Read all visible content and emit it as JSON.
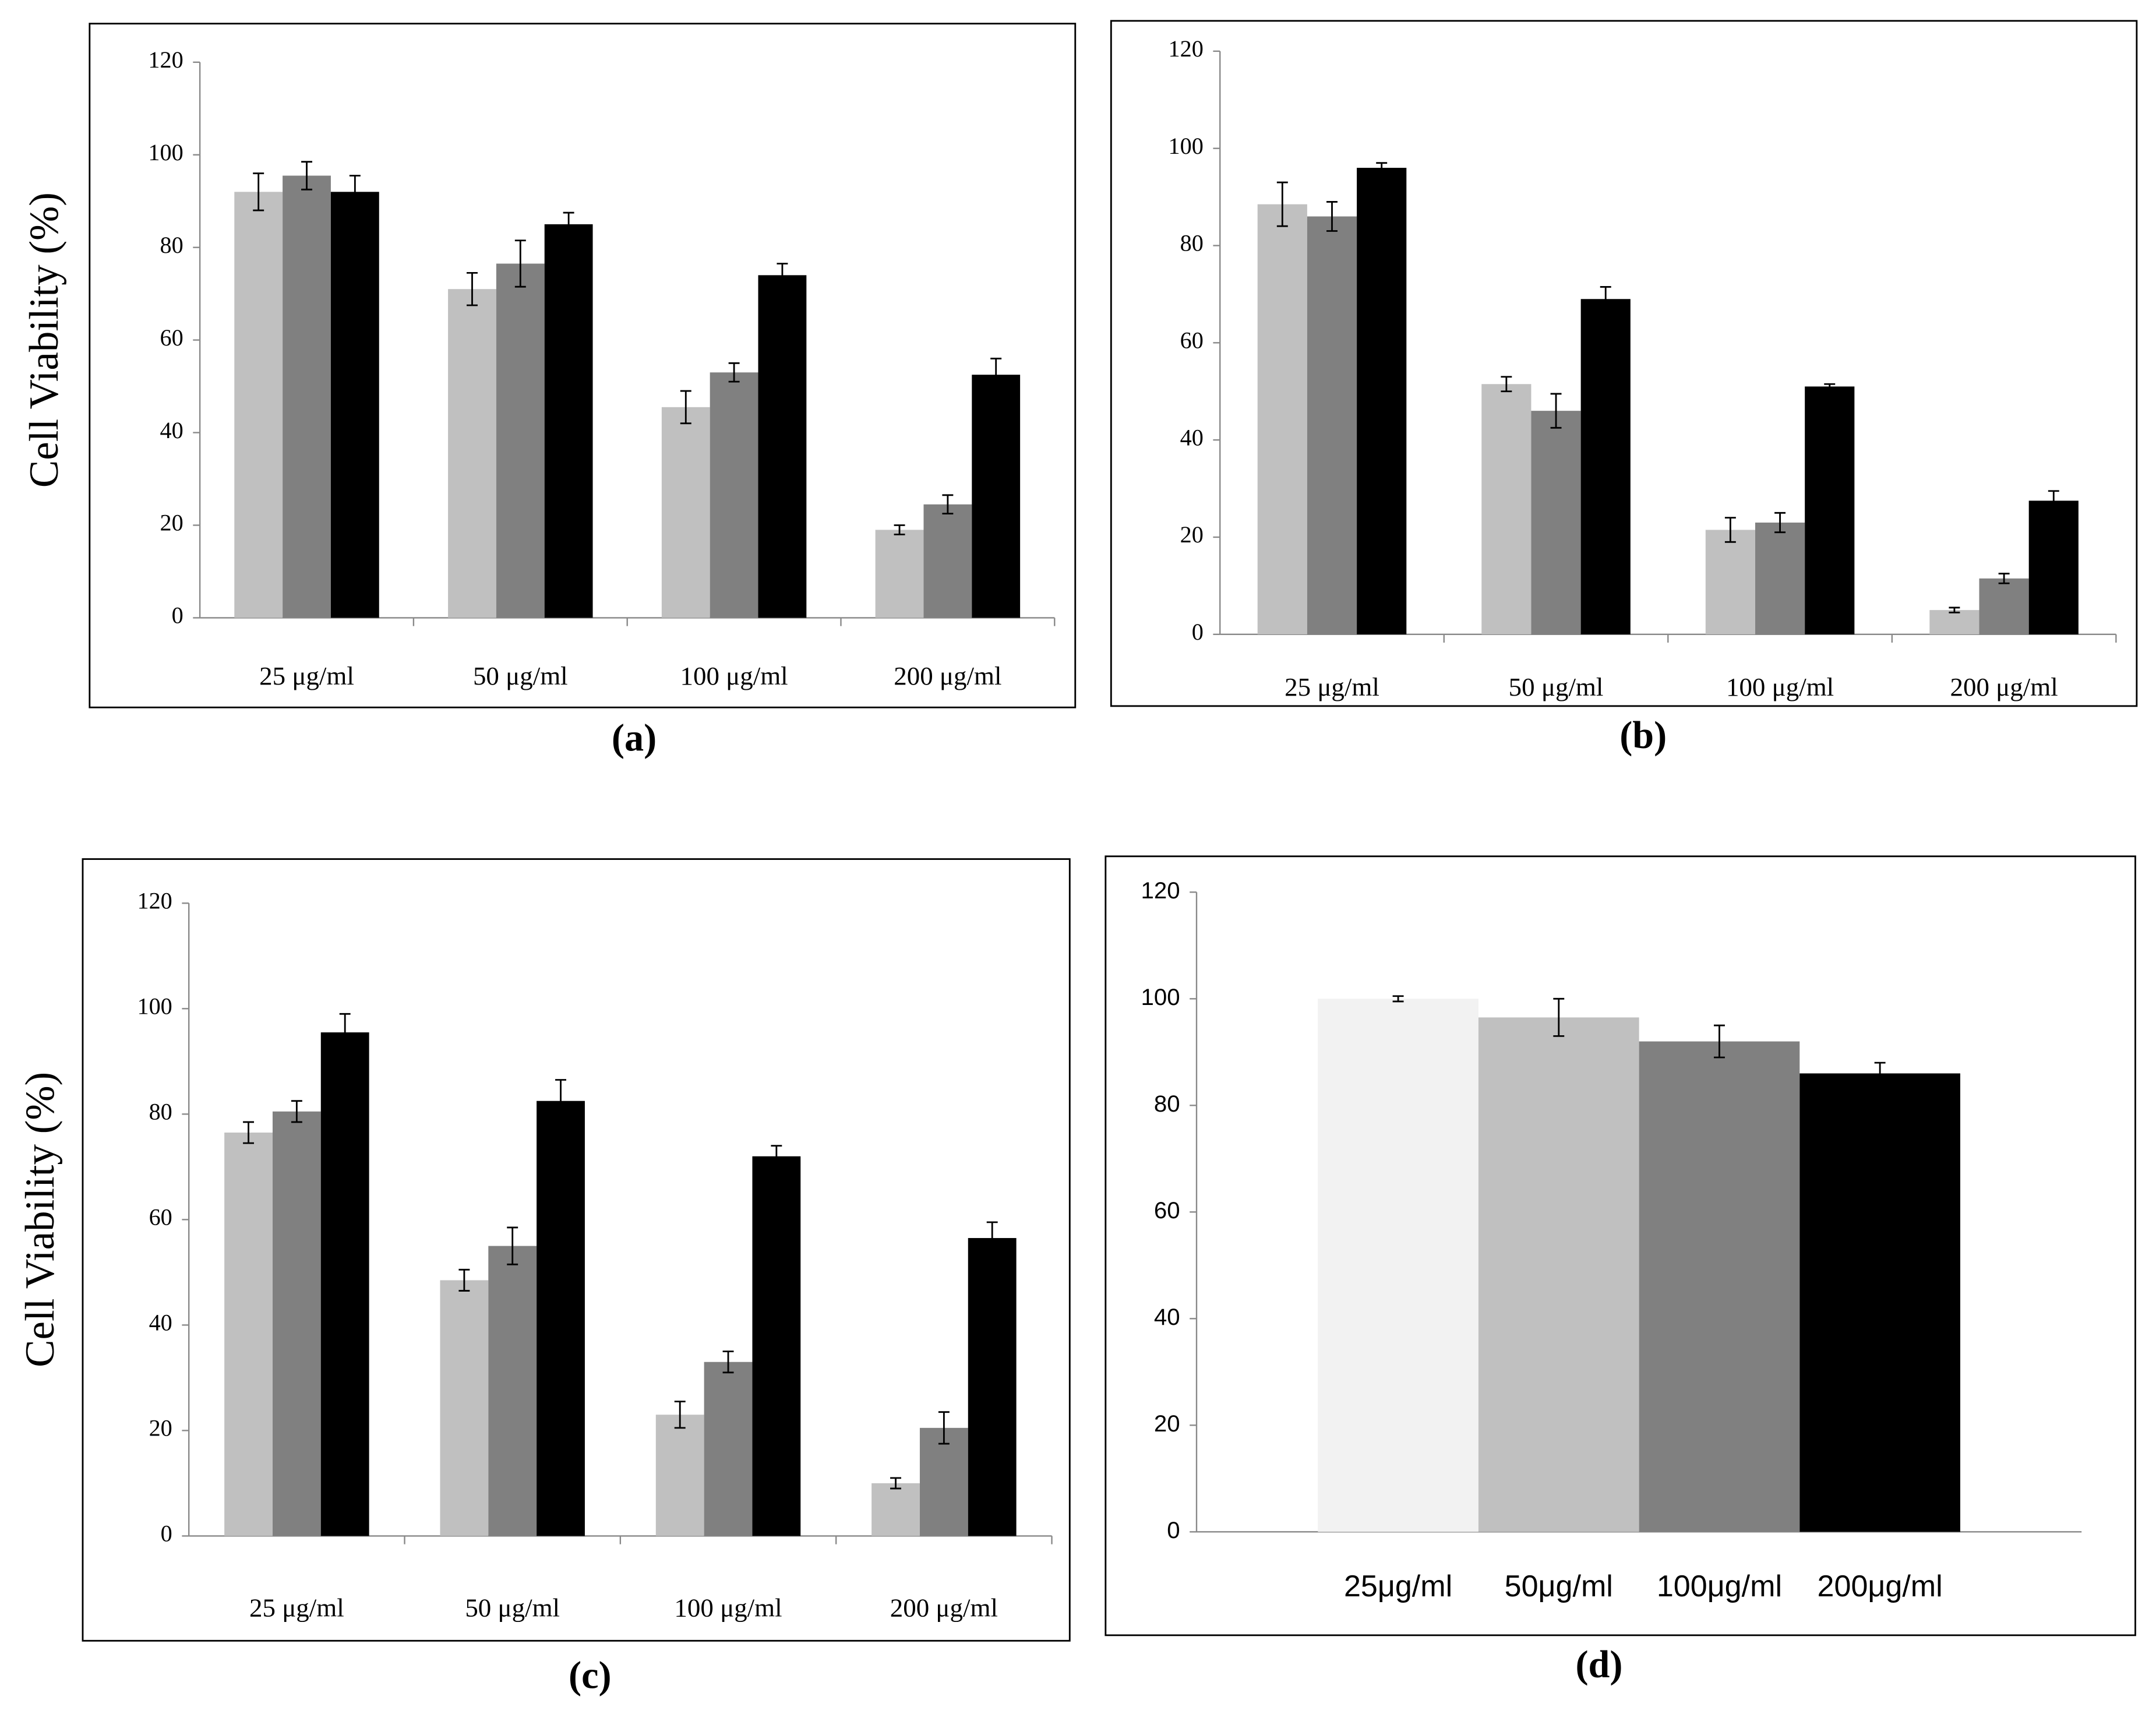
{
  "chart_data": [
    {
      "type": "bar",
      "panel": "(a)",
      "ylabel": "Cell Viability (%)",
      "categories": [
        "25 μg/ml",
        "50 μg/ml",
        "100  μg/ml",
        "200 μg/ml"
      ],
      "series": [
        {
          "color": "#c0c0c0",
          "values": [
            92,
            71,
            45.5,
            19
          ],
          "errors": [
            4,
            3.5,
            3.5,
            1
          ]
        },
        {
          "color": "#808080",
          "values": [
            95.5,
            76.5,
            53,
            24.5
          ],
          "errors": [
            3,
            5,
            2,
            2
          ]
        },
        {
          "color": "#000000",
          "values": [
            92,
            85,
            74,
            52.5
          ],
          "errors": [
            3.5,
            2.5,
            2.5,
            3.5
          ]
        }
      ],
      "ylim": [
        0,
        120
      ],
      "yticks": [
        0,
        20,
        40,
        60,
        80,
        100,
        120
      ]
    },
    {
      "type": "bar",
      "panel": "(b)",
      "categories": [
        "25 μg/ml",
        "50 μg/ml",
        "100  μg/ml",
        "200 μg/ml"
      ],
      "series": [
        {
          "color": "#c0c0c0",
          "values": [
            88.5,
            51.5,
            21.5,
            5
          ],
          "errors": [
            4.5,
            1.5,
            2.5,
            0.5
          ]
        },
        {
          "color": "#808080",
          "values": [
            86,
            46,
            23,
            11.5
          ],
          "errors": [
            3,
            3.5,
            2,
            1
          ]
        },
        {
          "color": "#000000",
          "values": [
            96,
            69,
            51,
            27.5
          ],
          "errors": [
            1,
            2.5,
            0.5,
            2
          ]
        }
      ],
      "ylim": [
        0,
        120
      ],
      "yticks": [
        0,
        20,
        40,
        60,
        80,
        100,
        120
      ]
    },
    {
      "type": "bar",
      "panel": "(c)",
      "ylabel": "Cell Viability (%)",
      "categories": [
        "25 μg/ml",
        "50 μg/ml",
        "100  μg/ml",
        "200 μg/ml"
      ],
      "series": [
        {
          "color": "#c0c0c0",
          "values": [
            76.5,
            48.5,
            23,
            10
          ],
          "errors": [
            2,
            2,
            2.5,
            1
          ]
        },
        {
          "color": "#808080",
          "values": [
            80.5,
            55,
            33,
            20.5
          ],
          "errors": [
            2,
            3.5,
            2,
            3
          ]
        },
        {
          "color": "#000000",
          "values": [
            95.5,
            82.5,
            72,
            56.5
          ],
          "errors": [
            3.5,
            4,
            2,
            3
          ]
        }
      ],
      "ylim": [
        0,
        120
      ],
      "yticks": [
        0,
        20,
        40,
        60,
        80,
        100,
        120
      ]
    },
    {
      "type": "bar",
      "panel": "(d)",
      "categories": [
        "25μg/ml",
        "50μg/ml",
        "100μg/ml",
        "200μg/ml"
      ],
      "series": [
        {
          "colors": [
            "#f2f2f2",
            "#c0c0c0",
            "#808080",
            "#000000"
          ],
          "values": [
            100,
            96.5,
            92,
            86
          ],
          "errors": [
            0.5,
            3.5,
            3,
            2
          ]
        }
      ],
      "ylim": [
        0,
        120
      ],
      "yticks": [
        0,
        20,
        40,
        60,
        80,
        100,
        120
      ]
    }
  ]
}
